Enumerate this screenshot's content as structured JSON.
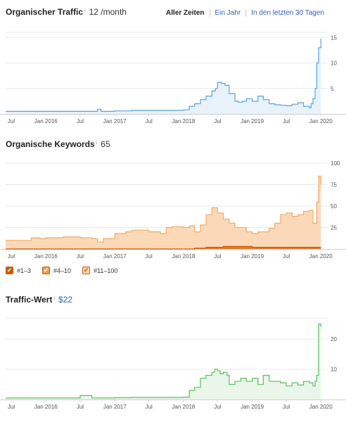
{
  "traffic": {
    "title": "Organischer Traffic",
    "info": "i",
    "value": "12 /month",
    "tabs": [
      "Aller Zeiten",
      "Ein Jahr",
      "In den letzten 30 Tagen"
    ]
  },
  "keywords": {
    "title": "Organische Keywords",
    "info": "i",
    "value": "65",
    "legend": [
      "#1–3",
      "#4–10",
      "#11–100"
    ],
    "legend_colors": [
      "#d35400",
      "#f39c4a",
      "#fbd5ae"
    ]
  },
  "value": {
    "title": "Traffic-Wert",
    "info": "i",
    "value": "$22"
  },
  "colors": {
    "blue": "#5aa3db",
    "orange": "#f6a965",
    "green": "#5cc05c",
    "link": "#2f62b8"
  },
  "chart_data": [
    {
      "type": "area",
      "title": "Organischer Traffic",
      "x_tick_labels": [
        "Jul",
        "Jan 2016",
        "Jul",
        "Jan 2017",
        "Jul",
        "Jan 2018",
        "Jul",
        "Jan 2019",
        "Jul",
        "Jan 2020"
      ],
      "y_ticks": [
        5,
        10,
        15
      ],
      "ylim": [
        0,
        16
      ],
      "grid": true,
      "series": [
        {
          "color": "#5aa3db",
          "x": [
            "2015-06-01",
            "2015-07-01",
            "2015-10-01",
            "2016-01-01",
            "2016-04-01",
            "2016-07-01",
            "2016-09-15",
            "2016-10-01",
            "2016-10-20",
            "2017-01-01",
            "2017-04-01",
            "2017-07-01",
            "2017-10-01",
            "2018-01-01",
            "2018-02-01",
            "2018-03-01",
            "2018-04-01",
            "2018-05-01",
            "2018-06-01",
            "2018-06-20",
            "2018-07-01",
            "2018-07-20",
            "2018-08-10",
            "2018-09-01",
            "2018-10-01",
            "2018-10-20",
            "2018-11-10",
            "2018-12-01",
            "2019-01-01",
            "2019-02-01",
            "2019-03-01",
            "2019-04-01",
            "2019-05-01",
            "2019-06-01",
            "2019-07-01",
            "2019-08-01",
            "2019-09-01",
            "2019-10-01",
            "2019-11-01",
            "2019-11-10",
            "2019-11-20",
            "2019-12-01",
            "2019-12-10",
            "2019-12-20",
            "2020-01-01"
          ],
          "values": [
            0.5,
            0.5,
            0.5,
            0.5,
            0.5,
            0.5,
            0.5,
            0.9,
            0.5,
            0.6,
            0.7,
            0.7,
            0.7,
            0.8,
            1.5,
            2,
            2.8,
            3.5,
            4.5,
            5,
            6.2,
            6,
            5.6,
            4,
            2.5,
            2.3,
            2.5,
            3,
            2.5,
            3.5,
            2.8,
            2,
            1.8,
            1.7,
            1.6,
            1.9,
            2.2,
            1.5,
            1.2,
            2,
            3,
            5,
            10,
            13,
            14.8
          ]
        }
      ]
    },
    {
      "type": "area",
      "title": "Organische Keywords",
      "x_tick_labels": [
        "Jul",
        "Jan 2016",
        "Jul",
        "Jan 2017",
        "Jul",
        "Jan 2018",
        "Jul",
        "Jan 2019",
        "Jul",
        "Jan 2020"
      ],
      "y_ticks": [
        25,
        50,
        75,
        100
      ],
      "ylim": [
        0,
        100
      ],
      "grid": true,
      "legend": [
        "#1–3",
        "#4–10",
        "#11–100"
      ],
      "series": [
        {
          "name": "#11–100",
          "color": "#f6a965",
          "x": [
            "2015-06-01",
            "2015-09-01",
            "2015-10-15",
            "2015-12-01",
            "2016-01-01",
            "2016-04-01",
            "2016-07-01",
            "2016-09-01",
            "2016-10-01",
            "2016-11-01",
            "2017-01-01",
            "2017-03-01",
            "2017-04-01",
            "2017-06-01",
            "2017-07-01",
            "2017-09-01",
            "2017-10-01",
            "2017-11-01",
            "2018-01-01",
            "2018-02-01",
            "2018-03-01",
            "2018-04-01",
            "2018-05-01",
            "2018-06-01",
            "2018-07-01",
            "2018-08-01",
            "2018-09-01",
            "2018-10-01",
            "2018-12-01",
            "2019-01-01",
            "2019-02-01",
            "2019-04-01",
            "2019-05-01",
            "2019-06-01",
            "2019-07-01",
            "2019-08-01",
            "2019-09-01",
            "2019-10-01",
            "2019-11-01",
            "2019-11-20",
            "2019-12-10",
            "2019-12-20",
            "2020-01-01"
          ],
          "values": [
            10,
            10,
            13,
            12,
            13,
            14,
            13,
            12,
            8,
            12,
            18,
            20,
            22,
            22,
            20,
            18,
            25,
            26,
            25,
            27,
            20,
            28,
            40,
            48,
            42,
            35,
            30,
            25,
            20,
            18,
            20,
            24,
            30,
            40,
            42,
            38,
            40,
            44,
            45,
            30,
            55,
            85,
            75
          ]
        },
        {
          "name": "#4–10",
          "color": "#e06d1f",
          "x": [
            "2015-06-01",
            "2018-01-01",
            "2018-03-01",
            "2018-05-01",
            "2018-08-01",
            "2018-10-01",
            "2019-01-01",
            "2019-06-01",
            "2019-12-01",
            "2020-01-01"
          ],
          "values": [
            0,
            0,
            1,
            2,
            3,
            3,
            2,
            2,
            2,
            2
          ]
        }
      ]
    },
    {
      "type": "area",
      "title": "Traffic-Wert",
      "x_tick_labels": [
        "Jul",
        "Jan 2016",
        "Jul",
        "Jan 2017",
        "Jul",
        "Jan 2018",
        "Jul",
        "Jan 2019",
        "Jul",
        "Jan 2020"
      ],
      "y_ticks": [
        10,
        20
      ],
      "ylim": [
        0,
        27
      ],
      "grid": true,
      "series": [
        {
          "color": "#5cc05c",
          "x": [
            "2015-06-01",
            "2016-01-01",
            "2016-06-01",
            "2016-07-01",
            "2016-08-01",
            "2016-09-01",
            "2016-10-01",
            "2017-01-01",
            "2017-04-01",
            "2017-07-01",
            "2017-10-01",
            "2018-01-01",
            "2018-02-01",
            "2018-03-01",
            "2018-04-01",
            "2018-05-01",
            "2018-06-01",
            "2018-06-15",
            "2018-07-01",
            "2018-07-15",
            "2018-08-01",
            "2018-08-20",
            "2018-09-01",
            "2018-10-01",
            "2018-11-01",
            "2018-12-01",
            "2019-01-01",
            "2019-02-01",
            "2019-03-01",
            "2019-04-01",
            "2019-05-01",
            "2019-06-01",
            "2019-07-01",
            "2019-08-01",
            "2019-09-01",
            "2019-10-01",
            "2019-11-01",
            "2019-11-20",
            "2019-12-01",
            "2019-12-10",
            "2019-12-20",
            "2020-01-01"
          ],
          "values": [
            0.5,
            0.5,
            0.5,
            1.3,
            1.3,
            0.5,
            0.5,
            0.6,
            0.7,
            0.7,
            0.7,
            0.8,
            3,
            4,
            7,
            8,
            9,
            10,
            9.5,
            8.5,
            9,
            8,
            5,
            6,
            7,
            6,
            7,
            5,
            8,
            6,
            6,
            5.5,
            4.5,
            5.5,
            4.8,
            6,
            5.5,
            4.5,
            6,
            8,
            25,
            24
          ]
        }
      ]
    }
  ]
}
